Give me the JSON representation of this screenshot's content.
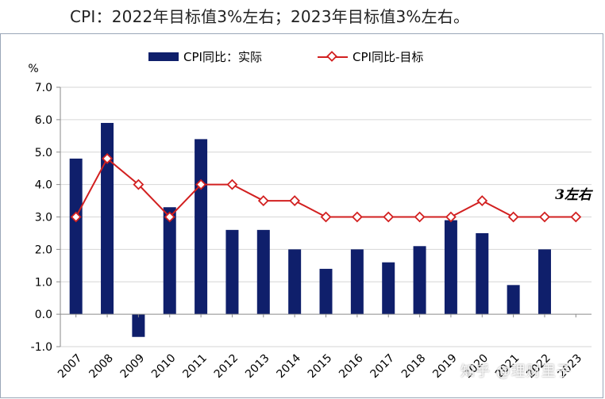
{
  "headline": "CPI：2022年目标值3%左右；2023年目标值3%左右。",
  "watermark": "知乎 @理财里子",
  "colors": {
    "bar": "#0f1f6b",
    "line": "#d22020",
    "marker_fill": "#ffffff",
    "axis": "#8a8a8a",
    "grid": "#d6d6d6",
    "text": "#000000",
    "frame": "#9aa7b8"
  },
  "chart_data": {
    "type": "bar",
    "categories": [
      "2007",
      "2008",
      "2009",
      "2010",
      "2011",
      "2012",
      "2013",
      "2014",
      "2015",
      "2016",
      "2017",
      "2018",
      "2019",
      "2020",
      "2021",
      "2022",
      "2023"
    ],
    "series": [
      {
        "name": "CPI同比：实际",
        "type": "bar",
        "values": [
          4.8,
          5.9,
          -0.7,
          3.3,
          5.4,
          2.6,
          2.6,
          2.0,
          1.4,
          2.0,
          1.6,
          2.1,
          2.9,
          2.5,
          0.9,
          2.0,
          null
        ]
      },
      {
        "name": "CPI同比-目标",
        "type": "line",
        "values": [
          3.0,
          4.8,
          4.0,
          3.0,
          4.0,
          4.0,
          3.5,
          3.5,
          3.0,
          3.0,
          3.0,
          3.0,
          3.0,
          3.5,
          3.0,
          3.0,
          3.0
        ]
      }
    ],
    "ylabel": "%",
    "ylim": [
      -1.0,
      7.0
    ],
    "yticks": [
      "-1.0",
      "0.0",
      "1.0",
      "2.0",
      "3.0",
      "4.0",
      "5.0",
      "6.0",
      "7.0"
    ],
    "annotation": "3左右",
    "grid": true,
    "legend": "top"
  }
}
